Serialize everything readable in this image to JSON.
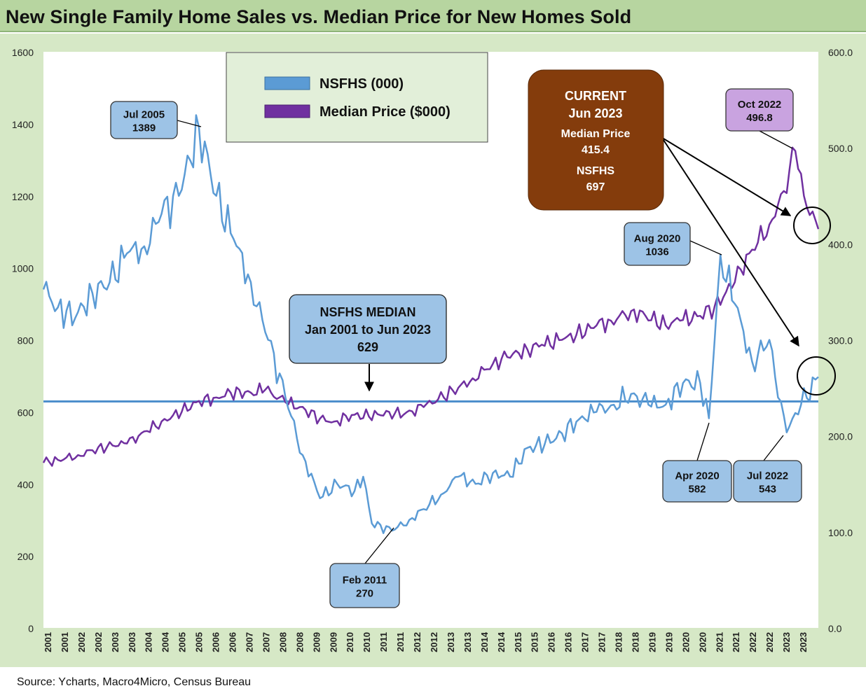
{
  "title": "New Single Family Home Sales vs. Median Price for New Homes Sold",
  "source": "Source: Ycharts, Macro4Micro, Census Bureau",
  "colors": {
    "nsfhs": "#5b9bd5",
    "price": "#7030a0",
    "background": "#d6e8c6",
    "title_bg": "#b7d5a0",
    "current_box": "#843c0c",
    "callout_blue": "#9dc3e6",
    "callout_purple": "#c9a3e0"
  },
  "chart_data": {
    "type": "line",
    "title": "New Single Family Home Sales vs. Median Price for New Homes Sold",
    "x_range": [
      "2001-01",
      "2023-06"
    ],
    "x_tick_labels": [
      "2001",
      "2001",
      "2002",
      "2002",
      "2003",
      "2003",
      "2004",
      "2004",
      "2005",
      "2005",
      "2006",
      "2006",
      "2007",
      "2007",
      "2008",
      "2008",
      "2009",
      "2009",
      "2010",
      "2010",
      "2011",
      "2011",
      "2012",
      "2012",
      "2013",
      "2013",
      "2014",
      "2014",
      "2015",
      "2015",
      "2016",
      "2016",
      "2017",
      "2017",
      "2018",
      "2018",
      "2019",
      "2019",
      "2020",
      "2020",
      "2021",
      "2021",
      "2022",
      "2022",
      "2023",
      "2023"
    ],
    "y_left": {
      "min": 0,
      "max": 1600,
      "ticks": [
        "0",
        "200",
        "400",
        "600",
        "800",
        "1000",
        "1200",
        "1400",
        "1600"
      ]
    },
    "y_right": {
      "min": 0,
      "max": 600,
      "ticks": [
        "0.0",
        "100.0",
        "200.0",
        "300.0",
        "400.0",
        "500.0",
        "600.0"
      ]
    },
    "legend": {
      "placement": "top-left",
      "items": [
        "NSFHS (000)",
        "Median Price ($000)"
      ]
    },
    "series": [
      {
        "name": "NSFHS (000)",
        "axis": "left",
        "points": [
          [
            "2001-01",
            940
          ],
          [
            "2001-06",
            890
          ],
          [
            "2001-12",
            860
          ],
          [
            "2002-06",
            930
          ],
          [
            "2002-12",
            960
          ],
          [
            "2003-06",
            1040
          ],
          [
            "2003-12",
            1060
          ],
          [
            "2004-06",
            1150
          ],
          [
            "2004-12",
            1200
          ],
          [
            "2005-07",
            1389
          ],
          [
            "2006-01",
            1200
          ],
          [
            "2006-07",
            1080
          ],
          [
            "2007-01",
            960
          ],
          [
            "2007-07",
            800
          ],
          [
            "2008-01",
            640
          ],
          [
            "2008-07",
            480
          ],
          [
            "2009-01",
            360
          ],
          [
            "2009-07",
            400
          ],
          [
            "2010-01",
            380
          ],
          [
            "2010-04",
            420
          ],
          [
            "2010-07",
            290
          ],
          [
            "2011-02",
            270
          ],
          [
            "2011-08",
            300
          ],
          [
            "2012-01",
            330
          ],
          [
            "2012-07",
            370
          ],
          [
            "2013-01",
            420
          ],
          [
            "2013-07",
            400
          ],
          [
            "2014-01",
            430
          ],
          [
            "2014-07",
            420
          ],
          [
            "2015-01",
            500
          ],
          [
            "2015-07",
            510
          ],
          [
            "2016-01",
            540
          ],
          [
            "2016-07",
            580
          ],
          [
            "2017-01",
            600
          ],
          [
            "2017-07",
            620
          ],
          [
            "2018-01",
            650
          ],
          [
            "2018-07",
            620
          ],
          [
            "2019-01",
            620
          ],
          [
            "2019-07",
            680
          ],
          [
            "2020-01",
            680
          ],
          [
            "2020-04",
            582
          ],
          [
            "2020-08",
            1036
          ],
          [
            "2021-01",
            900
          ],
          [
            "2021-07",
            740
          ],
          [
            "2022-01",
            800
          ],
          [
            "2022-04",
            640
          ],
          [
            "2022-07",
            543
          ],
          [
            "2022-12",
            620
          ],
          [
            "2023-06",
            697
          ]
        ]
      },
      {
        "name": "Median Price ($000)",
        "axis": "right",
        "points": [
          [
            "2001-01",
            172
          ],
          [
            "2001-06",
            175
          ],
          [
            "2002-01",
            180
          ],
          [
            "2002-06",
            185
          ],
          [
            "2003-01",
            190
          ],
          [
            "2003-06",
            192
          ],
          [
            "2004-01",
            205
          ],
          [
            "2004-06",
            215
          ],
          [
            "2005-01",
            225
          ],
          [
            "2005-06",
            235
          ],
          [
            "2006-01",
            240
          ],
          [
            "2006-06",
            245
          ],
          [
            "2007-01",
            245
          ],
          [
            "2007-06",
            248
          ],
          [
            "2008-01",
            235
          ],
          [
            "2008-06",
            230
          ],
          [
            "2009-01",
            218
          ],
          [
            "2009-06",
            215
          ],
          [
            "2010-01",
            222
          ],
          [
            "2010-06",
            220
          ],
          [
            "2011-01",
            225
          ],
          [
            "2011-06",
            222
          ],
          [
            "2012-01",
            230
          ],
          [
            "2012-06",
            238
          ],
          [
            "2013-01",
            250
          ],
          [
            "2013-06",
            260
          ],
          [
            "2014-01",
            275
          ],
          [
            "2014-06",
            282
          ],
          [
            "2015-01",
            290
          ],
          [
            "2015-06",
            295
          ],
          [
            "2016-01",
            300
          ],
          [
            "2016-06",
            305
          ],
          [
            "2017-01",
            315
          ],
          [
            "2017-06",
            320
          ],
          [
            "2018-01",
            330
          ],
          [
            "2018-06",
            325
          ],
          [
            "2019-01",
            315
          ],
          [
            "2019-06",
            320
          ],
          [
            "2020-01",
            325
          ],
          [
            "2020-06",
            335
          ],
          [
            "2021-01",
            360
          ],
          [
            "2021-06",
            390
          ],
          [
            "2022-01",
            420
          ],
          [
            "2022-06",
            455
          ],
          [
            "2022-10",
            496.8
          ],
          [
            "2023-01",
            450
          ],
          [
            "2023-03",
            430
          ],
          [
            "2023-06",
            415.4
          ]
        ]
      }
    ],
    "reference_line": {
      "label": "NSFHS MEDIAN",
      "value": 629
    },
    "annotations": [
      {
        "label": "Jul 2005",
        "value": "1389"
      },
      {
        "label": "Feb 2011",
        "value": "270"
      },
      {
        "label": "Aug 2020",
        "value": "1036"
      },
      {
        "label": "Apr 2020",
        "value": "582"
      },
      {
        "label": "Jul 2022",
        "value": "543"
      },
      {
        "label": "Oct 2022",
        "value": "496.8"
      }
    ],
    "median_box": {
      "line1": "NSFHS MEDIAN",
      "line2": "Jan 2001 to Jun 2023",
      "line3": "629"
    },
    "current_box": {
      "line1": "CURRENT",
      "line2": "Jun 2023",
      "line3": "Median Price",
      "line4": "415.4",
      "line5": "NSFHS",
      "line6": "697"
    }
  }
}
